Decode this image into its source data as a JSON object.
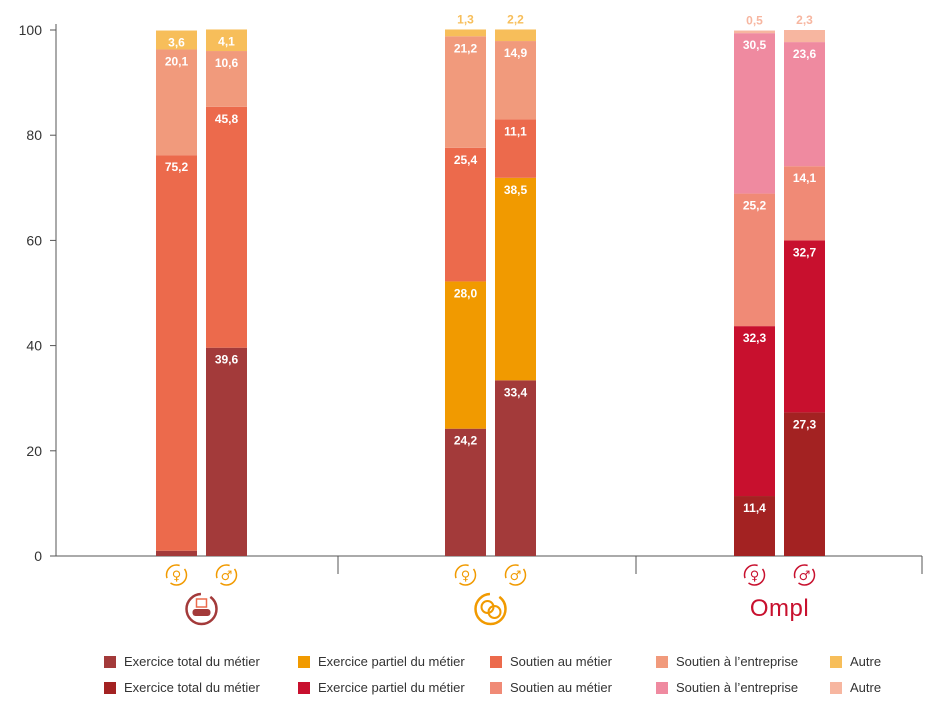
{
  "chart_data": {
    "type": "bar",
    "stacked": true,
    "ylim": [
      0,
      100
    ],
    "y_ticks": [
      "0",
      "20",
      "40",
      "60",
      "80",
      "100"
    ],
    "groups": [
      {
        "icon": "car-sales-icon",
        "bars": [
          {
            "sex_symbol": "♀",
            "sex": "female",
            "segments": [
              {
                "value": 1.0,
                "label": "1,0",
                "color": "#a33a3a",
                "series": "Exercice total du métier"
              },
              {
                "value": 75.2,
                "label": "75,2",
                "color": "#ec6a4c",
                "series": "Soutien au métier"
              },
              {
                "value": 20.1,
                "label": "20,1",
                "color": "#f19a7c",
                "series": "Soutien à l’entreprise"
              },
              {
                "value": 3.6,
                "label": "3,6",
                "color": "#f7be5a",
                "series": "Autre"
              }
            ]
          },
          {
            "sex_symbol": "♂",
            "sex": "male",
            "segments": [
              {
                "value": 39.6,
                "label": "39,6",
                "color": "#a33a3a",
                "series": "Exercice total du métier"
              },
              {
                "value": 45.8,
                "label": "45,8",
                "color": "#ec6a4c",
                "series": "Soutien au métier"
              },
              {
                "value": 10.6,
                "label": "10,6",
                "color": "#f19a7c",
                "series": "Soutien à l’entreprise"
              },
              {
                "value": 4.1,
                "label": "4,1",
                "color": "#f7be5a",
                "series": "Autre"
              }
            ]
          }
        ]
      },
      {
        "icon": "coins-icon",
        "bars": [
          {
            "sex_symbol": "♀",
            "sex": "female",
            "segments": [
              {
                "value": 24.2,
                "label": "24,2",
                "color": "#a33a3a",
                "series": "Exercice total du métier"
              },
              {
                "value": 28.0,
                "label": "28,0",
                "color": "#f19a00",
                "series": "Exercice partiel du métier"
              },
              {
                "value": 25.4,
                "label": "25,4",
                "color": "#ec6a4c",
                "series": "Soutien au métier"
              },
              {
                "value": 21.2,
                "label": "21,2",
                "color": "#f19a7c",
                "series": "Soutien à l’entreprise"
              },
              {
                "value": 1.3,
                "label": "1,3",
                "color": "#f7be5a",
                "series": "Autre"
              }
            ]
          },
          {
            "sex_symbol": "♂",
            "sex": "male",
            "segments": [
              {
                "value": 33.4,
                "label": "33,4",
                "color": "#a33a3a",
                "series": "Exercice total du métier"
              },
              {
                "value": 38.5,
                "label": "38,5",
                "color": "#f19a00",
                "series": "Exercice partiel du métier"
              },
              {
                "value": 11.1,
                "label": "11,1",
                "color": "#ec6a4c",
                "series": "Soutien au métier"
              },
              {
                "value": 14.9,
                "label": "14,9",
                "color": "#f19a7c",
                "series": "Soutien à l’entreprise"
              },
              {
                "value": 2.2,
                "label": "2,2",
                "color": "#f7be5a",
                "series": "Autre"
              }
            ]
          }
        ]
      },
      {
        "icon": "ompl-logo",
        "logo_text": "Ompl",
        "bars": [
          {
            "sex_symbol": "♀",
            "sex": "female",
            "segments": [
              {
                "value": 11.4,
                "label": "11,4",
                "color": "#a32222",
                "series": "Exercice total du métier"
              },
              {
                "value": 32.3,
                "label": "32,3",
                "color": "#c8102e",
                "series": "Exercice partiel du métier"
              },
              {
                "value": 25.2,
                "label": "25,2",
                "color": "#f08a76",
                "series": "Soutien au métier"
              },
              {
                "value": 30.5,
                "label": "30,5",
                "color": "#ef8aa0",
                "series": "Soutien à l’entreprise"
              },
              {
                "value": 0.5,
                "label": "0,5",
                "color": "#f7b6a0",
                "series": "Autre"
              }
            ]
          },
          {
            "sex_symbol": "♂",
            "sex": "male",
            "segments": [
              {
                "value": 27.3,
                "label": "27,3",
                "color": "#a32222",
                "series": "Exercice total du métier"
              },
              {
                "value": 32.7,
                "label": "32,7",
                "color": "#c8102e",
                "series": "Exercice partiel du métier"
              },
              {
                "value": 14.1,
                "label": "14,1",
                "color": "#f08a76",
                "series": "Soutien au métier"
              },
              {
                "value": 23.6,
                "label": "23,6",
                "color": "#ef8aa0",
                "series": "Soutien à l’entreprise"
              },
              {
                "value": 2.3,
                "label": "2,3",
                "color": "#f7b6a0",
                "series": "Autre"
              }
            ]
          }
        ]
      }
    ]
  },
  "legend": [
    [
      {
        "label": "Exercice total du métier",
        "color": "#a33a3a"
      },
      {
        "label": "Exercice partiel du métier",
        "color": "#f19a00"
      },
      {
        "label": "Soutien au métier",
        "color": "#ec6a4c"
      },
      {
        "label": "Soutien à l’entreprise",
        "color": "#f19a7c"
      },
      {
        "label": "Autre",
        "color": "#f7be5a"
      }
    ],
    [
      {
        "label": "Exercice total du métier",
        "color": "#a32222"
      },
      {
        "label": "Exercice partiel du métier",
        "color": "#c8102e"
      },
      {
        "label": "Soutien au métier",
        "color": "#f08a76"
      },
      {
        "label": "Soutien à l’entreprise",
        "color": "#ef8aa0"
      },
      {
        "label": "Autre",
        "color": "#f7b6a0"
      }
    ]
  ]
}
